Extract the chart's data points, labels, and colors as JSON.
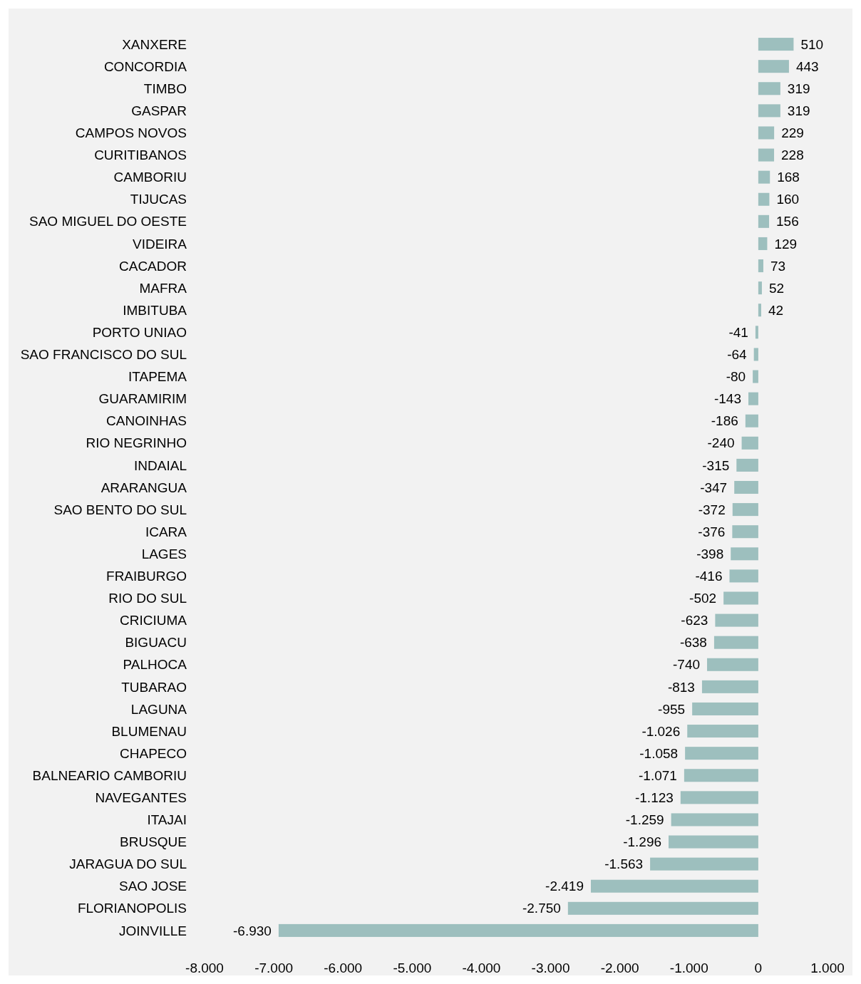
{
  "chart_data": {
    "type": "bar",
    "orientation": "horizontal",
    "color": "#9dbfbe",
    "categories": [
      "XANXERE",
      "CONCORDIA",
      "TIMBO",
      "GASPAR",
      "CAMPOS NOVOS",
      "CURITIBANOS",
      "CAMBORIU",
      "TIJUCAS",
      "SAO MIGUEL DO OESTE",
      "VIDEIRA",
      "CACADOR",
      "MAFRA",
      "IMBITUBA",
      "PORTO UNIAO",
      "SAO FRANCISCO DO SUL",
      "ITAPEMA",
      "GUARAMIRIM",
      "CANOINHAS",
      "RIO NEGRINHO",
      "INDAIAL",
      "ARARANGUA",
      "SAO BENTO DO SUL",
      "ICARA",
      "LAGES",
      "FRAIBURGO",
      "RIO DO SUL",
      "CRICIUMA",
      "BIGUACU",
      "PALHOCA",
      "TUBARAO",
      "LAGUNA",
      "BLUMENAU",
      "CHAPECO",
      "BALNEARIO CAMBORIU",
      "NAVEGANTES",
      "ITAJAI",
      "BRUSQUE",
      "JARAGUA DO SUL",
      "SAO JOSE",
      "FLORIANOPOLIS",
      "JOINVILLE"
    ],
    "values": [
      510,
      443,
      319,
      319,
      229,
      228,
      168,
      160,
      156,
      129,
      73,
      52,
      42,
      -41,
      -64,
      -80,
      -143,
      -186,
      -240,
      -315,
      -347,
      -372,
      -376,
      -398,
      -416,
      -502,
      -623,
      -638,
      -740,
      -813,
      -955,
      -1026,
      -1058,
      -1071,
      -1123,
      -1259,
      -1296,
      -1563,
      -2419,
      -2750,
      -6930
    ],
    "value_labels": [
      "510",
      "443",
      "319",
      "319",
      "229",
      "228",
      "168",
      "160",
      "156",
      "129",
      "73",
      "52",
      "42",
      "-41",
      "-64",
      "-80",
      "-143",
      "-186",
      "-240",
      "-315",
      "-347",
      "-372",
      "-376",
      "-398",
      "-416",
      "-502",
      "-623",
      "-638",
      "-740",
      "-813",
      "-955",
      "-1.026",
      "-1.058",
      "-1.071",
      "-1.123",
      "-1.259",
      "-1.296",
      "-1.563",
      "-2.419",
      "-2.750",
      "-6.930"
    ],
    "xlim": [
      -8000,
      1000
    ],
    "xticks": [
      {
        "value": -8000,
        "label": "-8.000"
      },
      {
        "value": -7000,
        "label": "-7.000"
      },
      {
        "value": -6000,
        "label": "-6.000"
      },
      {
        "value": -5000,
        "label": "-5.000"
      },
      {
        "value": -4000,
        "label": "-4.000"
      },
      {
        "value": -3000,
        "label": "-3.000"
      },
      {
        "value": -2000,
        "label": "-2.000"
      },
      {
        "value": -1000,
        "label": "-1.000"
      },
      0,
      {
        "value": 1000,
        "label": "1.000"
      }
    ],
    "grid": false
  }
}
